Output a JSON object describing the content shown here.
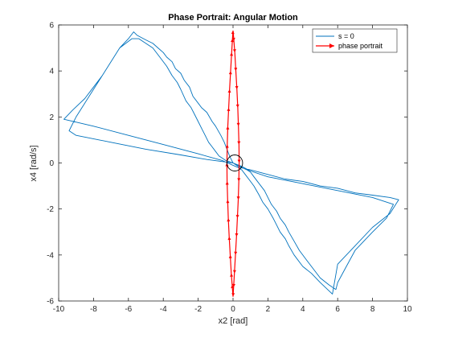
{
  "chart_data": {
    "type": "line",
    "title": "Phase Portrait: Angular Motion",
    "xlabel": "x2 [rad]",
    "ylabel": "x4 [rad/s]",
    "xlim": [
      -10,
      10
    ],
    "ylim": [
      -6,
      6
    ],
    "xticks": [
      -10,
      -8,
      -6,
      -4,
      -2,
      0,
      2,
      4,
      6,
      8,
      10
    ],
    "yticks": [
      -6,
      -4,
      -2,
      0,
      2,
      4,
      6
    ],
    "grid": false,
    "legend_position": "top-right",
    "series": [
      {
        "name": "s = 0",
        "color": "#0072bd",
        "marker": "none",
        "x": [
          0.0,
          -0.2,
          -0.3,
          -0.5,
          -0.7,
          -1.0,
          -1.2,
          -1.5,
          -1.8,
          -2.0,
          -2.3,
          -2.5,
          -2.8,
          -3.0,
          -3.3,
          -3.5,
          -3.8,
          -4.0,
          -4.3,
          -4.6,
          -5.0,
          -5.5,
          -5.7,
          -6.0,
          -6.5,
          -7.0,
          -7.5,
          -8.0,
          -8.5,
          -9.0,
          -9.4,
          -9.0,
          -7.0,
          -5.0,
          -3.0,
          -1.5,
          -0.5,
          0.0,
          0.4,
          1.0,
          2.0,
          3.0,
          4.0,
          5.0,
          6.0,
          7.0,
          8.0,
          9.0,
          9.5,
          9.0,
          8.0,
          7.0,
          6.0,
          5.7,
          5.0,
          4.5,
          4.0,
          3.5,
          3.2,
          3.0,
          2.7,
          2.5,
          2.3,
          2.0,
          1.7,
          1.5,
          1.2,
          1.0,
          0.7,
          0.5,
          0.3,
          0.0,
          -0.6,
          -2.0,
          -4.0,
          -6.0,
          -8.0,
          -9.7,
          -9.2,
          -8.5,
          -8.0,
          -7.5,
          -7.0,
          -6.5,
          -5.8,
          -5.4,
          -5.0,
          -4.6,
          -4.2,
          -3.8,
          -3.5,
          -3.2,
          -3.0,
          -2.7,
          -2.4,
          -2.2,
          -2.0,
          -1.8,
          -1.6,
          -1.4,
          -1.2,
          -1.0,
          -0.8,
          -0.6,
          -0.4,
          -0.2,
          0.0,
          0.5,
          1.0,
          2.0,
          4.0,
          6.0,
          8.0,
          9.2,
          8.8,
          8.0,
          7.0,
          6.5,
          6.0,
          5.9,
          5.5,
          5.0,
          4.6,
          4.2,
          3.8,
          3.5,
          3.2,
          3.0,
          2.7,
          2.5,
          2.2,
          2.0,
          1.8,
          1.5,
          1.2,
          1.0,
          0.8,
          0.5,
          0.3,
          0.1,
          0.0
        ],
        "y": [
          0.0,
          0.3,
          0.5,
          0.9,
          1.2,
          1.6,
          1.8,
          2.2,
          2.4,
          2.6,
          2.9,
          3.3,
          3.6,
          3.9,
          4.1,
          4.4,
          4.6,
          4.8,
          5.0,
          5.2,
          5.35,
          5.55,
          5.7,
          5.4,
          5.0,
          4.4,
          3.8,
          3.2,
          2.6,
          2.0,
          1.4,
          1.2,
          0.9,
          0.6,
          0.35,
          0.15,
          0.05,
          0.0,
          -0.2,
          -0.3,
          -0.5,
          -0.7,
          -0.8,
          -1.0,
          -1.1,
          -1.3,
          -1.4,
          -1.5,
          -1.6,
          -2.2,
          -2.8,
          -3.6,
          -4.4,
          -5.7,
          -5.2,
          -4.8,
          -4.5,
          -4.0,
          -3.6,
          -3.3,
          -3.0,
          -2.7,
          -2.4,
          -2.0,
          -1.7,
          -1.4,
          -1.0,
          -0.8,
          -0.5,
          -0.3,
          -0.2,
          -0.1,
          0.1,
          0.4,
          0.8,
          1.2,
          1.6,
          1.9,
          2.3,
          2.8,
          3.3,
          3.8,
          4.4,
          5.0,
          5.4,
          5.4,
          5.2,
          5.0,
          4.6,
          4.2,
          3.8,
          3.5,
          3.2,
          2.7,
          2.4,
          2.1,
          1.8,
          1.5,
          1.2,
          0.9,
          0.7,
          0.5,
          0.3,
          0.2,
          0.1,
          0.05,
          0.0,
          -0.15,
          -0.35,
          -0.6,
          -0.9,
          -1.2,
          -1.5,
          -1.8,
          -2.4,
          -3.0,
          -3.8,
          -4.5,
          -5.2,
          -5.5,
          -5.3,
          -5.0,
          -4.6,
          -4.2,
          -3.8,
          -3.4,
          -3.0,
          -2.7,
          -2.4,
          -2.1,
          -1.8,
          -1.5,
          -1.2,
          -0.9,
          -0.6,
          -0.4,
          -0.3,
          -0.2,
          -0.1,
          -0.05,
          0.0
        ]
      },
      {
        "name": "phase portrait",
        "color": "#ff0000",
        "marker": "arrow",
        "x": [
          0.0,
          0.05,
          0.1,
          0.16,
          0.22,
          0.27,
          0.31,
          0.34,
          0.35,
          0.33,
          0.3,
          0.25,
          0.2,
          0.14,
          0.08,
          0.03,
          0.0,
          -0.05,
          -0.1,
          -0.16,
          -0.22,
          -0.27,
          -0.31,
          -0.34,
          -0.35,
          -0.33,
          -0.3,
          -0.25,
          -0.2,
          -0.14,
          -0.08,
          -0.03,
          0.0
        ],
        "y": [
          5.75,
          5.3,
          4.8,
          4.0,
          3.2,
          2.4,
          1.6,
          0.8,
          0.0,
          -0.8,
          -1.6,
          -2.4,
          -3.2,
          -4.0,
          -4.8,
          -5.4,
          -5.8,
          -5.3,
          -4.8,
          -4.0,
          -3.2,
          -2.4,
          -1.6,
          -0.8,
          0.0,
          0.8,
          1.6,
          2.4,
          3.2,
          4.0,
          4.8,
          5.4,
          5.75
        ]
      }
    ],
    "annotations": [
      {
        "type": "circle",
        "center": [
          0.1,
          0.0
        ],
        "radius_x": 0.45,
        "radius_y": 0.35,
        "color": "#000000"
      }
    ]
  }
}
